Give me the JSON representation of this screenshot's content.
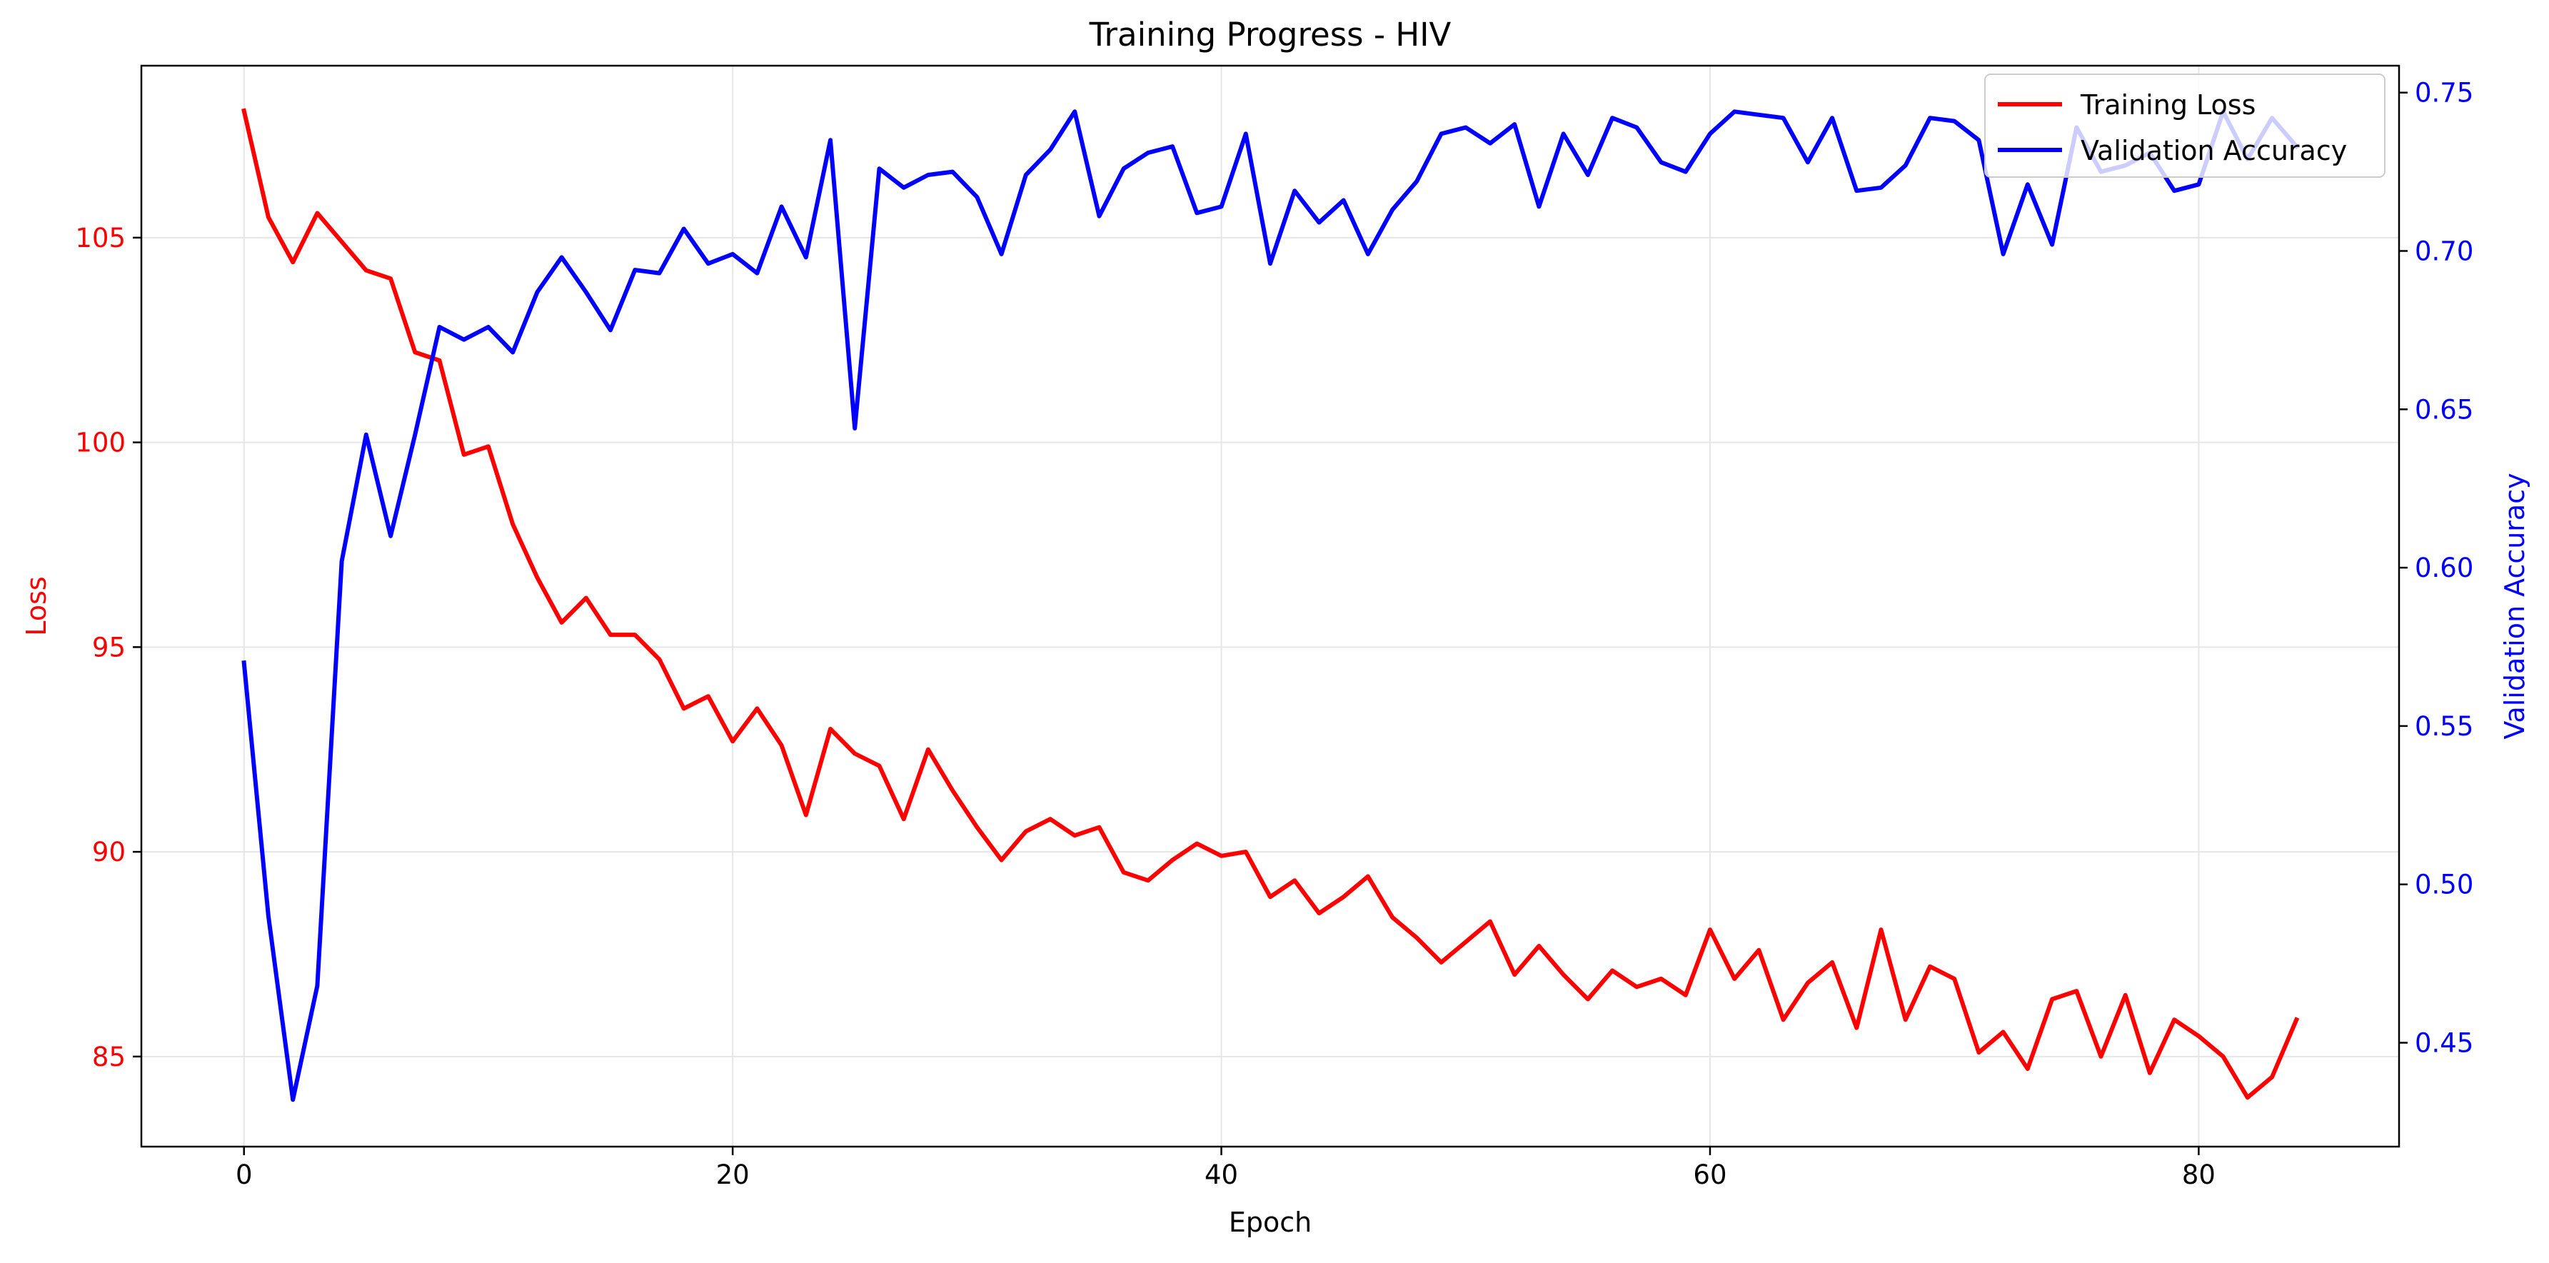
{
  "chart_data": {
    "type": "line",
    "title": "Training Progress - HIV",
    "xlabel": "Epoch",
    "ylabel_left": "Loss",
    "ylabel_right": "Validation Accuracy",
    "xlim": [
      -4.2,
      88.2
    ],
    "ylim_left": [
      82.8,
      109.2
    ],
    "ylim_right": [
      0.4172,
      0.7585
    ],
    "x_ticks": [
      0,
      20,
      40,
      60,
      80
    ],
    "x_tick_labels": [
      "0",
      "20",
      "40",
      "60",
      "80"
    ],
    "y_left_ticks": [
      85,
      90,
      95,
      100,
      105
    ],
    "y_left_tick_labels": [
      "85",
      "90",
      "95",
      "100",
      "105"
    ],
    "y_right_ticks": [
      0.45,
      0.5,
      0.55,
      0.6,
      0.65,
      0.7,
      0.75
    ],
    "y_right_tick_labels": [
      "0.45",
      "0.50",
      "0.55",
      "0.60",
      "0.65",
      "0.70",
      "0.75"
    ],
    "grid": true,
    "legend_position": "top-right",
    "colors": {
      "loss": "#ff0000",
      "accuracy": "#0000ff",
      "grid": "#e6e6e6",
      "axis": "#000000"
    },
    "x": [
      0,
      1,
      2,
      3,
      4,
      5,
      6,
      7,
      8,
      9,
      10,
      11,
      12,
      13,
      14,
      15,
      16,
      17,
      18,
      19,
      20,
      21,
      22,
      23,
      24,
      25,
      26,
      27,
      28,
      29,
      30,
      31,
      32,
      33,
      34,
      35,
      36,
      37,
      38,
      39,
      40,
      41,
      42,
      43,
      44,
      45,
      46,
      47,
      48,
      49,
      50,
      51,
      52,
      53,
      54,
      55,
      56,
      57,
      58,
      59,
      60,
      61,
      62,
      63,
      64,
      65,
      66,
      67,
      68,
      69,
      70,
      71,
      72,
      73,
      74,
      75,
      76,
      77,
      78,
      79,
      80,
      81,
      82,
      83,
      84
    ],
    "series": [
      {
        "name": "Training Loss",
        "axis": "left",
        "color": "#ff0000",
        "values": [
          108.1,
          105.5,
          104.4,
          105.6,
          104.9,
          104.2,
          104.0,
          102.2,
          102.0,
          99.7,
          99.9,
          98.0,
          96.7,
          95.6,
          96.2,
          95.3,
          95.3,
          94.7,
          93.5,
          93.8,
          92.7,
          93.5,
          92.6,
          90.9,
          93.0,
          92.4,
          92.1,
          90.8,
          92.5,
          91.5,
          90.6,
          89.8,
          90.5,
          90.8,
          90.4,
          90.6,
          89.5,
          89.3,
          89.8,
          90.2,
          89.9,
          90.0,
          88.9,
          89.3,
          88.5,
          88.9,
          89.4,
          88.4,
          87.9,
          87.3,
          87.8,
          88.3,
          87.0,
          87.7,
          87.0,
          86.4,
          87.1,
          86.7,
          86.9,
          86.5,
          88.1,
          86.9,
          87.6,
          85.9,
          86.8,
          87.3,
          85.7,
          88.1,
          85.9,
          87.2,
          86.9,
          85.1,
          85.6,
          84.7,
          86.4,
          86.6,
          85.0,
          86.5,
          84.6,
          85.9,
          85.5,
          85.0,
          84.0,
          84.5,
          85.9
        ]
      },
      {
        "name": "Validation Accuracy",
        "axis": "right",
        "color": "#0000ff",
        "values": [
          0.57,
          0.49,
          0.432,
          0.468,
          0.602,
          0.642,
          0.61,
          0.642,
          0.676,
          0.672,
          0.676,
          0.668,
          0.687,
          0.698,
          0.687,
          0.675,
          0.694,
          0.693,
          0.707,
          0.696,
          0.699,
          0.693,
          0.714,
          0.698,
          0.735,
          0.644,
          0.726,
          0.72,
          0.724,
          0.725,
          0.717,
          0.699,
          0.724,
          0.732,
          0.744,
          0.711,
          0.726,
          0.731,
          0.733,
          0.712,
          0.714,
          0.737,
          0.696,
          0.719,
          0.709,
          0.716,
          0.699,
          0.713,
          0.722,
          0.737,
          0.739,
          0.734,
          0.74,
          0.714,
          0.737,
          0.724,
          0.742,
          0.739,
          0.728,
          0.725,
          0.737,
          0.744,
          0.743,
          0.742,
          0.728,
          0.742,
          0.719,
          0.72,
          0.727,
          0.742,
          0.741,
          0.735,
          0.699,
          0.721,
          0.702,
          0.739,
          0.725,
          0.727,
          0.731,
          0.719,
          0.721,
          0.744,
          0.729,
          0.742,
          0.733
        ]
      }
    ]
  }
}
